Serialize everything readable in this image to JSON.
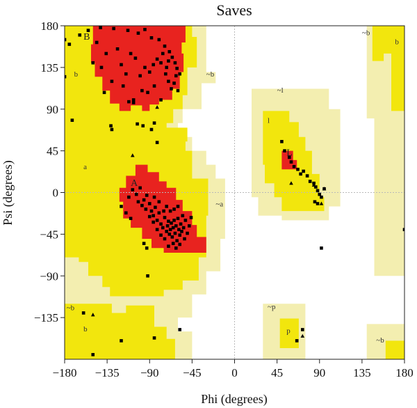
{
  "chart_data": {
    "type": "scatter",
    "title": "Saves",
    "xlabel": "Phi (degrees)",
    "ylabel": "Psi (degrees)",
    "xlim": [
      -180,
      180
    ],
    "ylim": [
      -180,
      180
    ],
    "x_ticks": [
      -180,
      -135,
      -90,
      -45,
      0,
      45,
      90,
      135,
      180
    ],
    "y_ticks": [
      -135,
      -90,
      -45,
      0,
      45,
      90,
      135,
      180
    ],
    "x_tick_labels": [
      "−180",
      "−135",
      "−90",
      "−45",
      "0",
      "45",
      "90",
      "135",
      "180"
    ],
    "y_tick_labels": [
      "−135",
      "−90",
      "−45",
      "0",
      "45",
      "90",
      "135",
      "180"
    ],
    "region_colors": {
      "most_favoured": "#e8231f",
      "additional_allowed": "#f2e60d",
      "generously_allowed": "#f3eeb0",
      "disallowed": "#ffffff"
    },
    "region_labels": [
      {
        "text": "B",
        "x": -160,
        "y": 165
      },
      {
        "text": "b",
        "x": -170,
        "y": 125
      },
      {
        "text": "~b",
        "x": -30,
        "y": 125
      },
      {
        "text": "a",
        "x": -160,
        "y": 25
      },
      {
        "text": "A",
        "x": -110,
        "y": 7
      },
      {
        "text": "~a",
        "x": -20,
        "y": -15
      },
      {
        "text": "~l",
        "x": 45,
        "y": 108
      },
      {
        "text": "l",
        "x": 35,
        "y": 75
      },
      {
        "text": "L",
        "x": 55,
        "y": 40
      },
      {
        "text": "~b",
        "x": 135,
        "y": 170
      },
      {
        "text": "b",
        "x": 170,
        "y": 160
      },
      {
        "text": "~b",
        "x": -178,
        "y": -127
      },
      {
        "text": "b",
        "x": -160,
        "y": -150
      },
      {
        "text": "~p",
        "x": 35,
        "y": -126
      },
      {
        "text": "p",
        "x": 55,
        "y": -152
      },
      {
        "text": "~b",
        "x": 150,
        "y": -162
      }
    ],
    "points": [
      [
        -175,
        160
      ],
      [
        -164,
        170
      ],
      [
        -155,
        175
      ],
      [
        -142,
        178
      ],
      [
        -128,
        177
      ],
      [
        -113,
        175
      ],
      [
        -102,
        172
      ],
      [
        -95,
        176
      ],
      [
        -88,
        167
      ],
      [
        -80,
        165
      ],
      [
        -74,
        158
      ],
      [
        -69,
        152
      ],
      [
        -66,
        146
      ],
      [
        -63,
        140
      ],
      [
        -61,
        134
      ],
      [
        -62,
        126
      ],
      [
        -64,
        118
      ],
      [
        -67,
        112
      ],
      [
        -70,
        142
      ],
      [
        -72,
        135
      ],
      [
        -73,
        128
      ],
      [
        -76,
        150
      ],
      [
        -78,
        140
      ],
      [
        -82,
        144
      ],
      [
        -86,
        138
      ],
      [
        -90,
        130
      ],
      [
        -95,
        135
      ],
      [
        -100,
        126
      ],
      [
        -105,
        145
      ],
      [
        -110,
        150
      ],
      [
        -115,
        128
      ],
      [
        -120,
        138
      ],
      [
        -124,
        155
      ],
      [
        -130,
        120
      ],
      [
        -136,
        150
      ],
      [
        -141,
        135
      ],
      [
        -146,
        162
      ],
      [
        -150,
        140
      ],
      [
        -118,
        115
      ],
      [
        -107,
        100
      ],
      [
        -85,
        115
      ],
      [
        -78,
        100
      ],
      [
        -70,
        120
      ],
      [
        -58,
        128
      ],
      [
        -60,
        110
      ],
      [
        -92,
        108
      ],
      [
        -112,
        98
      ],
      [
        -138,
        108
      ],
      [
        -131,
        72
      ],
      [
        -130,
        68
      ],
      [
        -103,
        74
      ],
      [
        -97,
        72
      ],
      [
        -85,
        75
      ],
      [
        -82,
        54
      ],
      [
        -88,
        68
      ],
      [
        -107,
        97
      ],
      [
        -98,
        110
      ],
      [
        -112,
        -5
      ],
      [
        -108,
        3
      ],
      [
        -104,
        -2
      ],
      [
        -100,
        5
      ],
      [
        -96,
        -8
      ],
      [
        -93,
        -3
      ],
      [
        -90,
        -12
      ],
      [
        -88,
        -20
      ],
      [
        -86,
        -25
      ],
      [
        -84,
        -16
      ],
      [
        -82,
        -30
      ],
      [
        -80,
        -22
      ],
      [
        -78,
        -34
      ],
      [
        -76,
        -38
      ],
      [
        -74,
        -27
      ],
      [
        -72,
        -42
      ],
      [
        -71,
        -36
      ],
      [
        -70,
        -31
      ],
      [
        -69,
        -45
      ],
      [
        -68,
        -40
      ],
      [
        -67,
        -33
      ],
      [
        -66,
        -48
      ],
      [
        -65,
        -38
      ],
      [
        -64,
        -30
      ],
      [
        -63,
        -44
      ],
      [
        -62,
        -36
      ],
      [
        -61,
        -52
      ],
      [
        -60,
        -28
      ],
      [
        -59,
        -40
      ],
      [
        -58,
        -46
      ],
      [
        -57,
        -34
      ],
      [
        -56,
        -42
      ],
      [
        -55,
        -25
      ],
      [
        -54,
        -38
      ],
      [
        -53,
        -50
      ],
      [
        -52,
        -30
      ],
      [
        -50,
        -44
      ],
      [
        -48,
        -36
      ],
      [
        -46,
        -27
      ],
      [
        -74,
        -50
      ],
      [
        -78,
        -46
      ],
      [
        -82,
        -40
      ],
      [
        -86,
        -32
      ],
      [
        -90,
        -26
      ],
      [
        -94,
        -18
      ],
      [
        -98,
        -14
      ],
      [
        -102,
        -10
      ],
      [
        -65,
        -55
      ],
      [
        -70,
        -58
      ],
      [
        -62,
        -60
      ],
      [
        -58,
        -56
      ],
      [
        -75,
        -20
      ],
      [
        -80,
        -10
      ],
      [
        -72,
        -15
      ],
      [
        -68,
        -20
      ],
      [
        -64,
        -18
      ],
      [
        -60,
        -15
      ],
      [
        -93,
        -60
      ],
      [
        -96,
        -55
      ],
      [
        -92,
        -90
      ],
      [
        -110,
        -28
      ],
      [
        -115,
        -22
      ],
      [
        -120,
        -15
      ],
      [
        -85,
        -5
      ],
      [
        50,
        55
      ],
      [
        53,
        45
      ],
      [
        58,
        38
      ],
      [
        60,
        33
      ],
      [
        63,
        28
      ],
      [
        67,
        25
      ],
      [
        70,
        20
      ],
      [
        73,
        23
      ],
      [
        77,
        18
      ],
      [
        80,
        12
      ],
      [
        84,
        10
      ],
      [
        86,
        6
      ],
      [
        88,
        2
      ],
      [
        90,
        -2
      ],
      [
        85,
        -10
      ],
      [
        88,
        -12
      ],
      [
        92,
        -5
      ],
      [
        95,
        4
      ],
      [
        -180,
        165
      ],
      [
        -180,
        125
      ],
      [
        -172,
        78
      ],
      [
        -160,
        -130
      ],
      [
        -150,
        -175
      ],
      [
        -120,
        -160
      ],
      [
        -85,
        -157
      ],
      [
        -58,
        -148
      ],
      [
        72,
        -148
      ],
      [
        66,
        -160
      ],
      [
        92,
        -60
      ],
      [
        180,
        -40
      ]
    ],
    "triangle_points": [
      [
        -108,
        40
      ],
      [
        -82,
        92
      ],
      [
        60,
        10
      ],
      [
        84,
        8
      ],
      [
        92,
        -12
      ],
      [
        95,
        4
      ],
      [
        72,
        -155
      ],
      [
        -150,
        -132
      ]
    ]
  }
}
